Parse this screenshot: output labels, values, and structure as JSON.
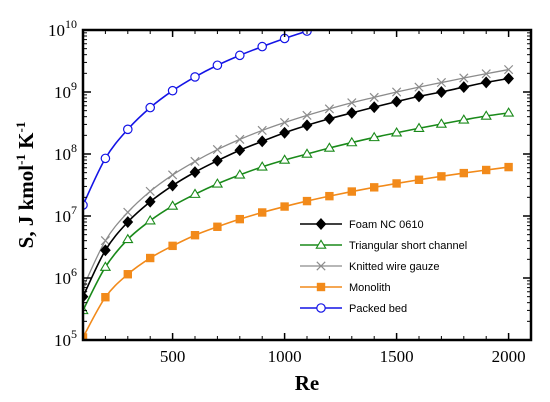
{
  "chart_data": {
    "type": "line",
    "title": "",
    "xlabel": "Re",
    "ylabel": "S, J kmol",
    "ylabel_sup1": "-1",
    "ylabel_mid": " K",
    "ylabel_sup2": "-1",
    "x_scale": "linear",
    "y_scale": "log",
    "xlim": [
      100,
      2100
    ],
    "ylim": [
      100000,
      10000000000
    ],
    "x_ticks": [
      500,
      1000,
      1500,
      2000
    ],
    "x_tick_labels": [
      "500",
      "1000",
      "1500",
      "2000"
    ],
    "y_ticks": [
      100000,
      1000000,
      10000000,
      100000000,
      1000000000,
      10000000000
    ],
    "y_tick_labels": [
      {
        "base": "10",
        "exp": "5"
      },
      {
        "base": "10",
        "exp": "6"
      },
      {
        "base": "10",
        "exp": "7"
      },
      {
        "base": "10",
        "exp": "8"
      },
      {
        "base": "10",
        "exp": "9"
      },
      {
        "base": "10",
        "exp": "10"
      }
    ],
    "grid": false,
    "legend_position": "lower-right",
    "series": [
      {
        "name": "Foam NC 0610",
        "color": "#000000",
        "marker": "diamond-filled",
        "x": [
          100,
          200,
          300,
          400,
          500,
          600,
          700,
          800,
          900,
          1000,
          1100,
          1200,
          1300,
          1400,
          1500,
          1600,
          1700,
          1800,
          1900,
          2000
        ],
        "y": [
          500000,
          2800000,
          8000000,
          17000000,
          31000000,
          51000000,
          78000000,
          115000000,
          160000000,
          220000000,
          290000000,
          370000000,
          460000000,
          570000000,
          700000000,
          850000000,
          1000000000,
          1200000000,
          1430000000,
          1650000000
        ]
      },
      {
        "name": "Triangular short channel",
        "color": "#1a8a1a",
        "marker": "triangle-open",
        "x": [
          100,
          200,
          300,
          400,
          500,
          600,
          700,
          800,
          900,
          1000,
          1100,
          1200,
          1300,
          1400,
          1500,
          1600,
          1700,
          1800,
          1900,
          2000
        ],
        "y": [
          300000,
          1500000,
          4200000,
          8400000,
          14500000,
          22500000,
          33000000,
          46000000,
          62000000,
          80000000,
          100000000,
          125000000,
          153000000,
          185000000,
          220000000,
          260000000,
          305000000,
          355000000,
          410000000,
          460000000
        ]
      },
      {
        "name": "Knitted wire gauze",
        "color": "#8c8c8c",
        "marker": "x",
        "x": [
          100,
          200,
          300,
          400,
          500,
          600,
          700,
          800,
          900,
          1000,
          1100,
          1200,
          1300,
          1400,
          1500,
          1600,
          1700,
          1800,
          1900,
          2000
        ],
        "y": [
          700000,
          4000000,
          11500000,
          25000000,
          46000000,
          76000000,
          118000000,
          172000000,
          240000000,
          322000000,
          420000000,
          535000000,
          670000000,
          820000000,
          1000000000,
          1200000000,
          1420000000,
          1680000000,
          1970000000,
          2300000000
        ]
      },
      {
        "name": "Monolith",
        "color": "#f28a1a",
        "marker": "square-filled",
        "x": [
          100,
          200,
          300,
          400,
          500,
          600,
          700,
          800,
          900,
          1000,
          1100,
          1200,
          1300,
          1400,
          1500,
          1600,
          1700,
          1800,
          1900,
          2000
        ],
        "y": [
          110000,
          490000,
          1150000,
          2100000,
          3300000,
          4900000,
          6700000,
          8900000,
          11400000,
          14200000,
          17400000,
          20900000,
          24800000,
          29000000,
          33500000,
          38400000,
          43600000,
          49200000,
          55200000,
          61500000
        ]
      },
      {
        "name": "Packed bed",
        "color": "#1414e6",
        "marker": "circle-open",
        "x": [
          100,
          200,
          300,
          400,
          500,
          600,
          700,
          800,
          900,
          1000,
          1100
        ],
        "y": [
          15000000,
          85000000,
          250000000,
          560000000,
          1050000000,
          1750000000,
          2700000000,
          3900000000,
          5400000000,
          7300000000,
          9600000000
        ]
      }
    ]
  }
}
